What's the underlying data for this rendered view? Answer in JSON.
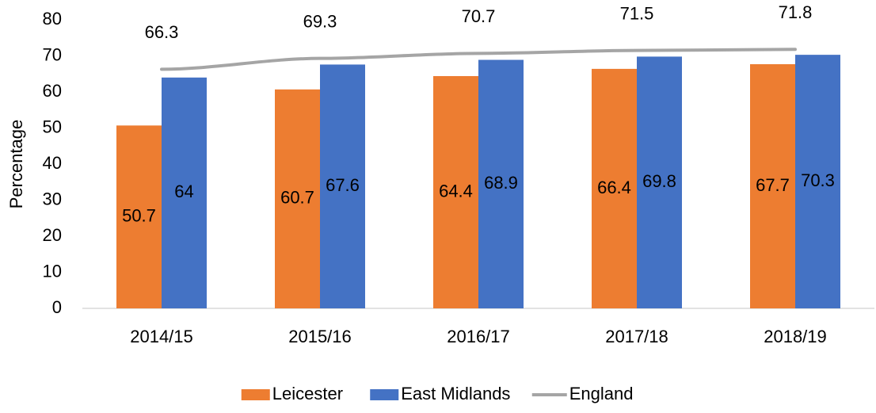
{
  "chart_data": {
    "type": "bar",
    "y_label": "Percentage",
    "categories": [
      "2014/15",
      "2015/16",
      "2016/17",
      "2017/18",
      "2018/19"
    ],
    "series": [
      {
        "name": "Leicester",
        "type": "bar",
        "color": "#ed7d31",
        "values": [
          50.7,
          60.7,
          64.4,
          66.4,
          67.7
        ]
      },
      {
        "name": "East Midlands",
        "type": "bar",
        "color": "#4472c4",
        "values": [
          64,
          67.6,
          68.9,
          69.8,
          70.3
        ]
      },
      {
        "name": "England",
        "type": "line",
        "color": "#a5a5a5",
        "values": [
          66.3,
          69.3,
          70.7,
          71.5,
          71.8
        ]
      }
    ],
    "ylim": [
      0,
      80
    ],
    "yticks": [
      0,
      10,
      20,
      30,
      40,
      50,
      60,
      70,
      80
    ],
    "grid": false,
    "legend": "bottom"
  }
}
